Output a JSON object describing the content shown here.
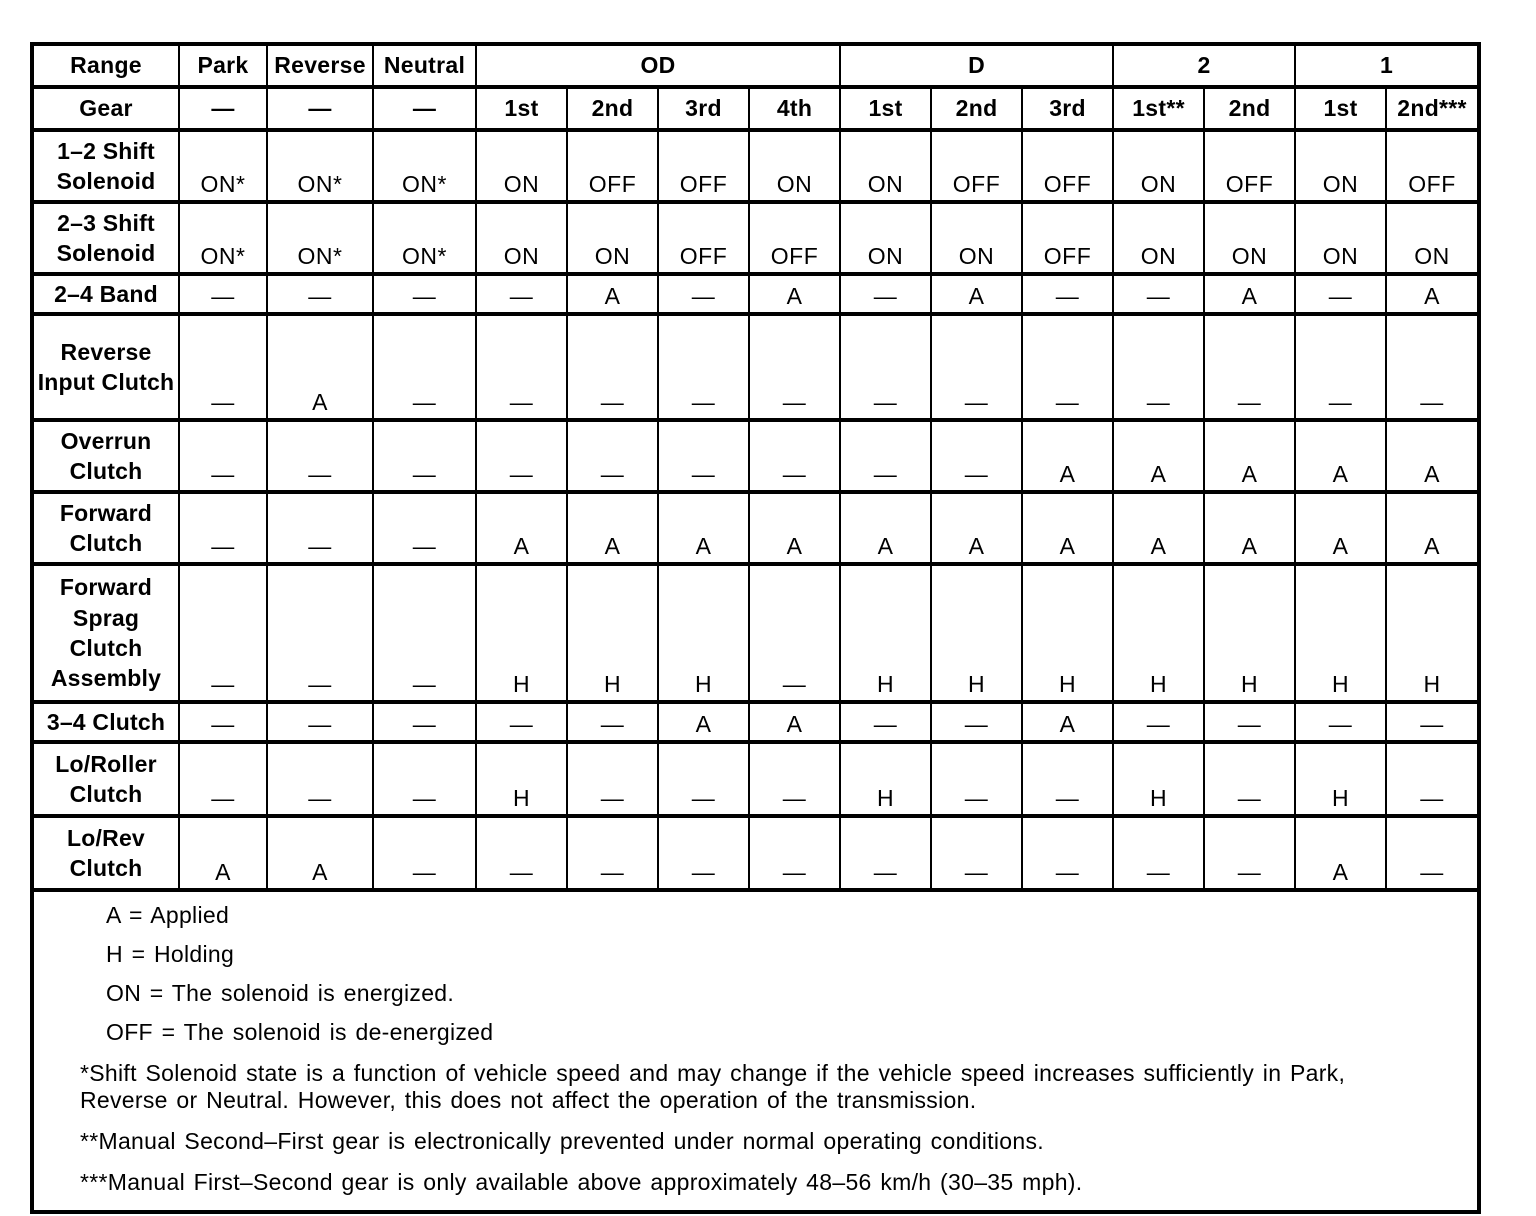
{
  "colors": {
    "ink": "#000000",
    "paper": "#ffffff"
  },
  "chart_data": {
    "type": "table",
    "title": "Transmission range / gear application chart",
    "columns": [
      "Park",
      "Reverse",
      "Neutral",
      "OD 1st",
      "OD 2nd",
      "OD 3rd",
      "OD 4th",
      "D 1st",
      "D 2nd",
      "D 3rd",
      "2 1st**",
      "2 2nd",
      "1 1st",
      "1 2nd***"
    ],
    "rows": [
      {
        "label": "1–2 Shift Solenoid",
        "values": [
          "ON*",
          "ON*",
          "ON*",
          "ON",
          "OFF",
          "OFF",
          "ON",
          "ON",
          "OFF",
          "OFF",
          "ON",
          "OFF",
          "ON",
          "OFF"
        ]
      },
      {
        "label": "2–3 Shift Solenoid",
        "values": [
          "ON*",
          "ON*",
          "ON*",
          "ON",
          "ON",
          "OFF",
          "OFF",
          "ON",
          "ON",
          "OFF",
          "ON",
          "ON",
          "ON",
          "ON"
        ]
      },
      {
        "label": "2–4 Band",
        "values": [
          "—",
          "—",
          "—",
          "—",
          "A",
          "—",
          "A",
          "—",
          "A",
          "—",
          "—",
          "A",
          "—",
          "A"
        ]
      },
      {
        "label": "Reverse Input Clutch",
        "values": [
          "—",
          "A",
          "—",
          "—",
          "—",
          "—",
          "—",
          "—",
          "—",
          "—",
          "—",
          "—",
          "—",
          "—"
        ]
      },
      {
        "label": "Overrun Clutch",
        "values": [
          "—",
          "—",
          "—",
          "—",
          "—",
          "—",
          "—",
          "—",
          "—",
          "A",
          "A",
          "A",
          "A",
          "A"
        ]
      },
      {
        "label": "Forward Clutch",
        "values": [
          "—",
          "—",
          "—",
          "A",
          "A",
          "A",
          "A",
          "A",
          "A",
          "A",
          "A",
          "A",
          "A",
          "A"
        ]
      },
      {
        "label": "Forward Sprag Clutch Assembly",
        "values": [
          "—",
          "—",
          "—",
          "H",
          "H",
          "H",
          "—",
          "H",
          "H",
          "H",
          "H",
          "H",
          "H",
          "H"
        ]
      },
      {
        "label": "3–4 Clutch",
        "values": [
          "—",
          "—",
          "—",
          "—",
          "—",
          "A",
          "A",
          "—",
          "—",
          "A",
          "—",
          "—",
          "—",
          "—"
        ]
      },
      {
        "label": "Lo/Roller Clutch",
        "values": [
          "—",
          "—",
          "—",
          "H",
          "—",
          "—",
          "—",
          "H",
          "—",
          "—",
          "H",
          "—",
          "H",
          "—"
        ]
      },
      {
        "label": "Lo/Rev Clutch",
        "values": [
          "A",
          "A",
          "—",
          "—",
          "—",
          "—",
          "—",
          "—",
          "—",
          "—",
          "—",
          "—",
          "A",
          "—"
        ]
      }
    ]
  },
  "header": {
    "range_label": "Range",
    "groups": [
      {
        "label": "Park"
      },
      {
        "label": "Reverse"
      },
      {
        "label": "Neutral"
      },
      {
        "label": "OD"
      },
      {
        "label": "D"
      },
      {
        "label": "2"
      },
      {
        "label": "1"
      }
    ]
  },
  "gear": {
    "label": "Gear",
    "cells": [
      "—",
      "—",
      "—",
      "1st",
      "2nd",
      "3rd",
      "4th",
      "1st",
      "2nd",
      "3rd",
      "1st**",
      "2nd",
      "1st",
      "2nd***"
    ]
  },
  "grid": {
    "rows": [
      {
        "label": "1–2 Shift Solenoid",
        "values": [
          "ON*",
          "ON*",
          "ON*",
          "ON",
          "OFF",
          "OFF",
          "ON",
          "ON",
          "OFF",
          "OFF",
          "ON",
          "OFF",
          "ON",
          "OFF"
        ]
      },
      {
        "label": "2–3 Shift Solenoid",
        "values": [
          "ON*",
          "ON*",
          "ON*",
          "ON",
          "ON",
          "OFF",
          "OFF",
          "ON",
          "ON",
          "OFF",
          "ON",
          "ON",
          "ON",
          "ON"
        ]
      },
      {
        "label": "2–4 Band",
        "values": [
          "—",
          "—",
          "—",
          "—",
          "A",
          "—",
          "A",
          "—",
          "A",
          "—",
          "—",
          "A",
          "—",
          "A"
        ]
      },
      {
        "label": "Reverse Input Clutch",
        "values": [
          "—",
          "A",
          "—",
          "—",
          "—",
          "—",
          "—",
          "—",
          "—",
          "—",
          "—",
          "—",
          "—",
          "—"
        ]
      },
      {
        "label": "Overrun Clutch",
        "values": [
          "—",
          "—",
          "—",
          "—",
          "—",
          "—",
          "—",
          "—",
          "—",
          "A",
          "A",
          "A",
          "A",
          "A"
        ]
      },
      {
        "label": "Forward Clutch",
        "values": [
          "—",
          "—",
          "—",
          "A",
          "A",
          "A",
          "A",
          "A",
          "A",
          "A",
          "A",
          "A",
          "A",
          "A"
        ]
      },
      {
        "label": "Forward Sprag Clutch Assembly",
        "values": [
          "—",
          "—",
          "—",
          "H",
          "H",
          "H",
          "—",
          "H",
          "H",
          "H",
          "H",
          "H",
          "H",
          "H"
        ]
      },
      {
        "label": "3–4 Clutch",
        "values": [
          "—",
          "—",
          "—",
          "—",
          "—",
          "A",
          "A",
          "—",
          "—",
          "A",
          "—",
          "—",
          "—",
          "—"
        ]
      },
      {
        "label": "Lo/Roller Clutch",
        "values": [
          "—",
          "—",
          "—",
          "H",
          "—",
          "—",
          "—",
          "H",
          "—",
          "—",
          "H",
          "—",
          "H",
          "—"
        ]
      },
      {
        "label": "Lo/Rev Clutch",
        "values": [
          "A",
          "A",
          "—",
          "—",
          "—",
          "—",
          "—",
          "—",
          "—",
          "—",
          "—",
          "—",
          "A",
          "—"
        ]
      }
    ]
  },
  "notes": [
    "A = Applied",
    "H = Holding",
    "ON = The solenoid is energized.",
    "OFF = The solenoid is de-energized",
    "*Shift Solenoid state is a function of vehicle speed and may change if the vehicle speed increases sufficiently in Park, Reverse or Neutral. However, this does not affect the operation of the transmission.",
    "**Manual Second–First gear is electronically prevented under normal operating conditions.",
    "***Manual First–Second gear is only available above approximately 48–56 km/h (30–35 mph)."
  ]
}
